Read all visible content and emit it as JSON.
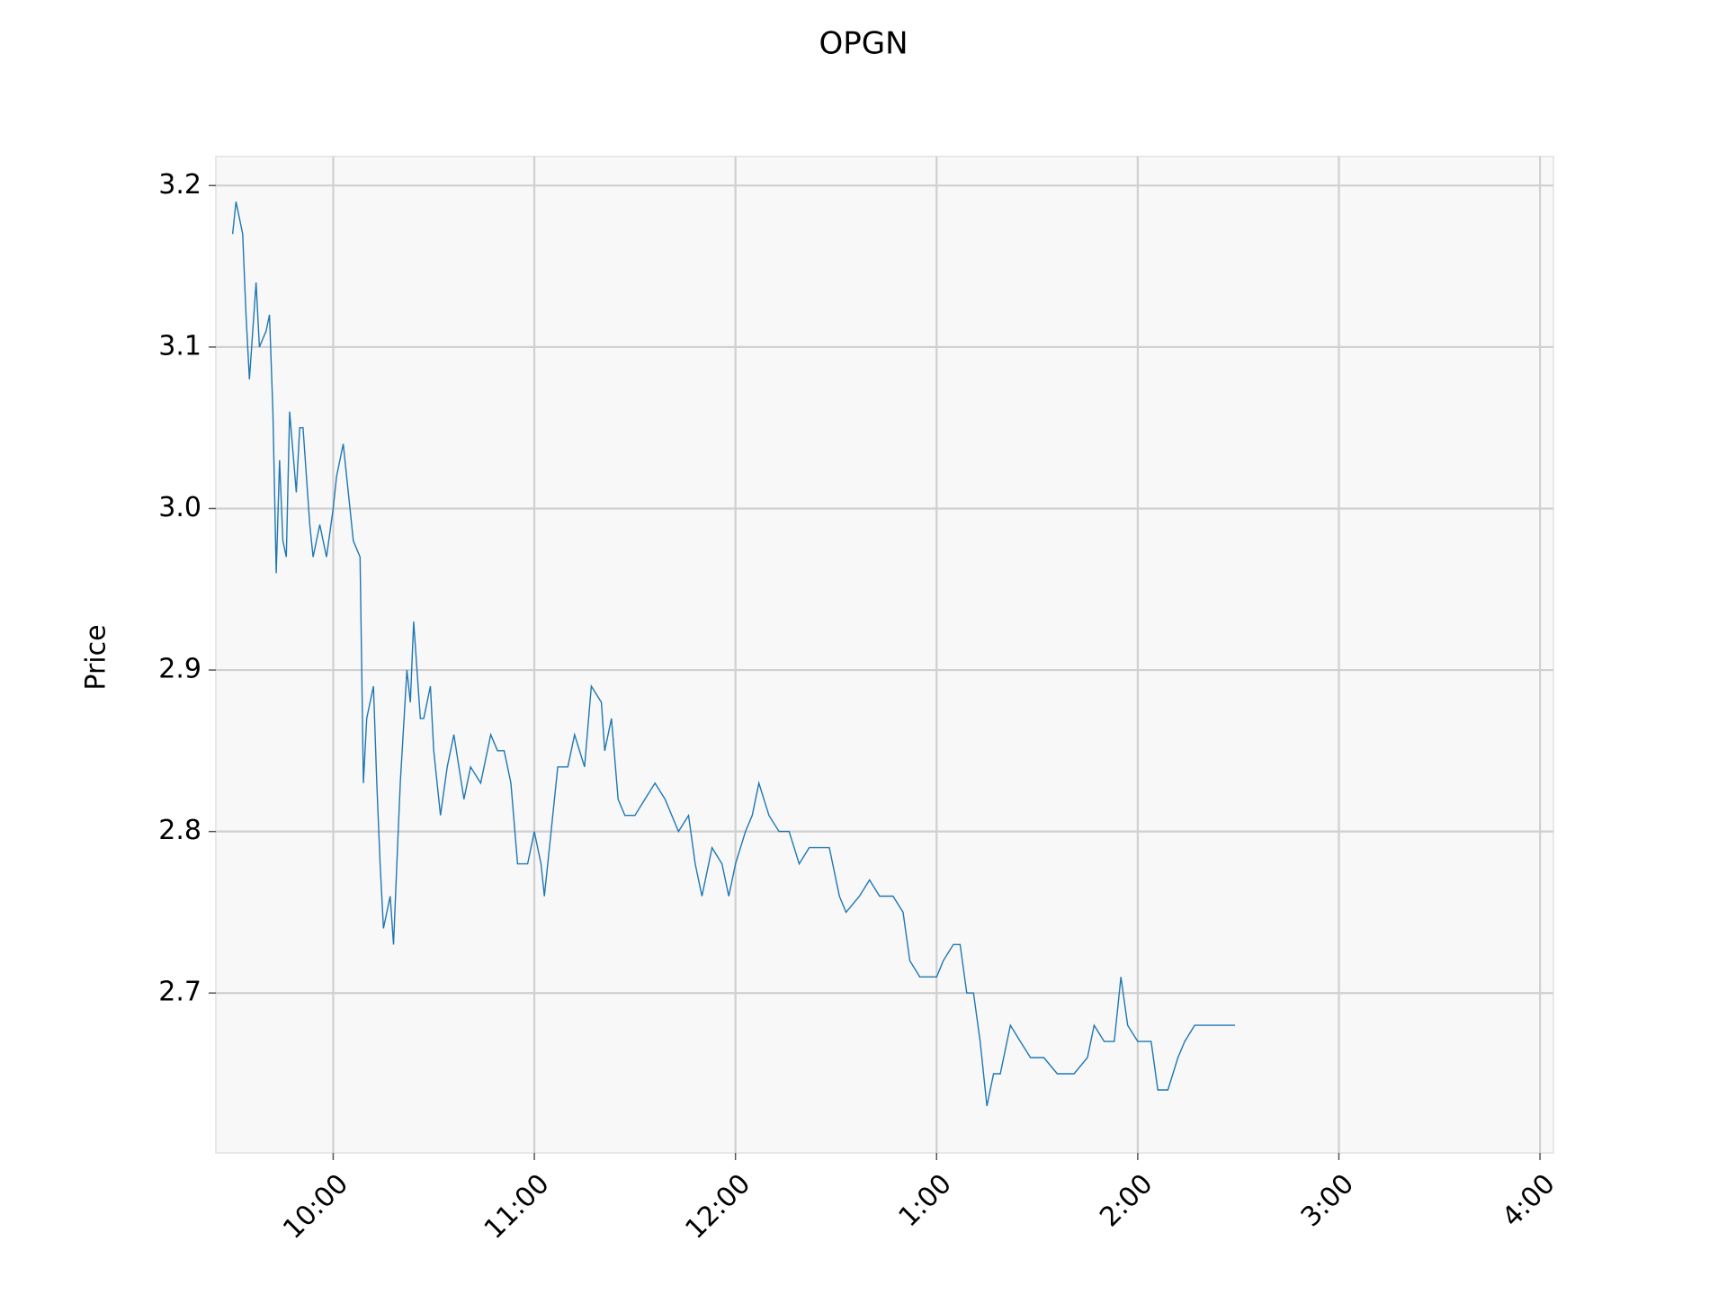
{
  "chart_data": {
    "type": "line",
    "title": "OPGN",
    "y_label": "Price",
    "color": "#1f77b4",
    "grid": true,
    "x": [
      "09:30",
      "09:31",
      "09:32",
      "09:33",
      "09:34",
      "09:35",
      "09:36",
      "09:37",
      "09:38",
      "09:40",
      "09:41",
      "09:42",
      "09:43",
      "09:44",
      "09:45",
      "09:46",
      "09:47",
      "09:49",
      "09:50",
      "09:51",
      "09:53",
      "09:54",
      "09:56",
      "09:58",
      "10:00",
      "10:01",
      "10:03",
      "10:05",
      "10:06",
      "10:08",
      "10:09",
      "10:10",
      "10:12",
      "10:13",
      "10:14",
      "10:15",
      "10:17",
      "10:18",
      "10:19",
      "10:20",
      "10:22",
      "10:23",
      "10:24",
      "10:26",
      "10:27",
      "10:29",
      "10:30",
      "10:32",
      "10:34",
      "10:36",
      "10:39",
      "10:41",
      "10:44",
      "10:47",
      "10:49",
      "10:51",
      "10:53",
      "10:55",
      "10:58",
      "11:00",
      "11:02",
      "11:03",
      "11:05",
      "11:07",
      "11:10",
      "11:12",
      "11:15",
      "11:17",
      "11:20",
      "11:21",
      "11:23",
      "11:25",
      "11:27",
      "11:30",
      "11:33",
      "11:36",
      "11:39",
      "11:43",
      "11:46",
      "11:48",
      "11:50",
      "11:53",
      "11:56",
      "11:58",
      "12:00",
      "12:03",
      "12:05",
      "12:07",
      "12:10",
      "12:13",
      "12:16",
      "12:19",
      "12:22",
      "12:25",
      "12:28",
      "12:31",
      "12:33",
      "12:37",
      "12:40",
      "12:43",
      "12:47",
      "12:50",
      "12:52",
      "12:55",
      "13:00",
      "13:02",
      "13:05",
      "13:07",
      "13:09",
      "13:11",
      "13:13",
      "13:15",
      "13:17",
      "13:19",
      "13:22",
      "13:25",
      "13:28",
      "13:32",
      "13:36",
      "13:41",
      "13:45",
      "13:47",
      "13:50",
      "13:53",
      "13:55",
      "13:57",
      "14:00",
      "14:04",
      "14:06",
      "14:09",
      "14:12",
      "14:14",
      "14:17",
      "14:20",
      "14:24",
      "14:29"
    ],
    "values": [
      3.17,
      3.19,
      3.18,
      3.17,
      3.12,
      3.08,
      3.11,
      3.14,
      3.1,
      3.11,
      3.12,
      3.06,
      2.96,
      3.03,
      2.98,
      2.97,
      3.06,
      3.01,
      3.05,
      3.05,
      2.99,
      2.97,
      2.99,
      2.97,
      3.0,
      3.02,
      3.04,
      3.0,
      2.98,
      2.97,
      2.83,
      2.87,
      2.89,
      2.83,
      2.78,
      2.74,
      2.76,
      2.73,
      2.78,
      2.83,
      2.9,
      2.88,
      2.93,
      2.87,
      2.87,
      2.89,
      2.85,
      2.81,
      2.84,
      2.86,
      2.82,
      2.84,
      2.83,
      2.86,
      2.85,
      2.85,
      2.83,
      2.78,
      2.78,
      2.8,
      2.78,
      2.76,
      2.8,
      2.84,
      2.84,
      2.86,
      2.84,
      2.89,
      2.88,
      2.85,
      2.87,
      2.82,
      2.81,
      2.81,
      2.82,
      2.83,
      2.82,
      2.8,
      2.81,
      2.78,
      2.76,
      2.79,
      2.78,
      2.76,
      2.78,
      2.8,
      2.81,
      2.83,
      2.81,
      2.8,
      2.8,
      2.78,
      2.79,
      2.79,
      2.79,
      2.76,
      2.75,
      2.76,
      2.77,
      2.76,
      2.76,
      2.75,
      2.72,
      2.71,
      2.71,
      2.72,
      2.73,
      2.73,
      2.7,
      2.7,
      2.67,
      2.63,
      2.65,
      2.65,
      2.68,
      2.67,
      2.66,
      2.66,
      2.65,
      2.65,
      2.66,
      2.68,
      2.67,
      2.67,
      2.71,
      2.68,
      2.67,
      2.67,
      2.64,
      2.64,
      2.66,
      2.67,
      2.68,
      2.68,
      2.68,
      2.68
    ],
    "xlim": [
      "09:25",
      "16:04"
    ],
    "xticks": [
      "10:00",
      "11:00",
      "12:00",
      {
        "value": "13:00",
        "label": "1:00"
      },
      {
        "value": "14:00",
        "label": "2:00"
      },
      {
        "value": "15:00",
        "label": "3:00"
      },
      {
        "value": "16:00",
        "label": "4:00"
      }
    ],
    "ylim": [
      2.601,
      3.218
    ],
    "yticks": [
      2.7,
      2.8,
      2.9,
      {
        "value": 3,
        "label": "3.0"
      },
      3.1,
      3.2
    ]
  }
}
